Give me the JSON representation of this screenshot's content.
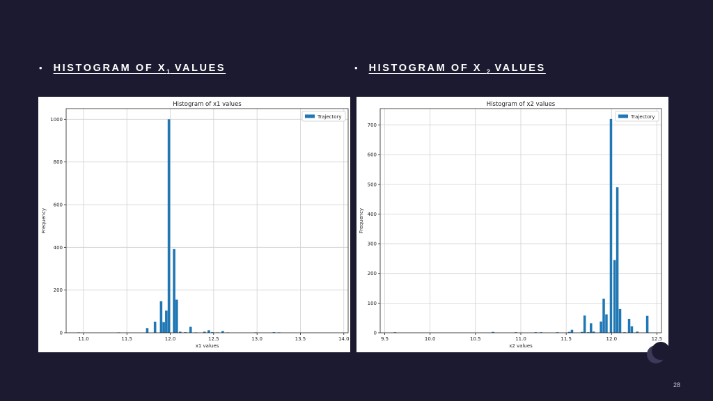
{
  "slide": {
    "heading_left": {
      "bullet": "•",
      "pre": "HISTOGRAM OF X",
      "sub": "1",
      "post": " VALUES"
    },
    "heading_right": {
      "bullet": "•",
      "pre": "HISTOGRAM OF X ",
      "sub": "2",
      "post": " VALUES"
    },
    "page_number": "28"
  },
  "colors": {
    "background": "#1c1a30",
    "bar": "#1f77b4",
    "panel": "#ffffff"
  },
  "chart_data": [
    {
      "type": "bar",
      "title": "Histogram of x1 values",
      "xlabel": "x1 values",
      "ylabel": "Frequency",
      "legend": [
        "Trajectory"
      ],
      "legend_position": "top-right",
      "grid": true,
      "xlim": [
        10.8,
        14.05
      ],
      "ylim": [
        0,
        1050
      ],
      "xticks": [
        "11.0",
        "11.5",
        "12.0",
        "12.5",
        "13.0",
        "13.5",
        "14.0"
      ],
      "yticks": [
        "0",
        "200",
        "400",
        "600",
        "800",
        "1000"
      ],
      "bin_width": 0.032,
      "bins": [
        [
          10.93,
          2
        ],
        [
          11.39,
          2
        ],
        [
          11.72,
          22
        ],
        [
          11.81,
          52
        ],
        [
          11.88,
          148
        ],
        [
          11.91,
          50
        ],
        [
          11.94,
          104
        ],
        [
          11.97,
          1000
        ],
        [
          12.03,
          392
        ],
        [
          12.06,
          155
        ],
        [
          12.1,
          5
        ],
        [
          12.16,
          3
        ],
        [
          12.22,
          28
        ],
        [
          12.28,
          2
        ],
        [
          12.38,
          5
        ],
        [
          12.43,
          12
        ],
        [
          12.47,
          3
        ],
        [
          12.53,
          2
        ],
        [
          12.59,
          8
        ],
        [
          12.65,
          2
        ],
        [
          12.97,
          2
        ],
        [
          13.18,
          3
        ],
        [
          13.24,
          2
        ]
      ]
    },
    {
      "type": "bar",
      "title": "Histogram of x2 values",
      "xlabel": "x2 values",
      "ylabel": "Frequency",
      "legend": [
        "Trajectory"
      ],
      "legend_position": "top-right",
      "grid": true,
      "xlim": [
        9.45,
        12.55
      ],
      "ylim": [
        0,
        755
      ],
      "xticks": [
        "9.5",
        "10.0",
        "10.5",
        "11.0",
        "11.5",
        "12.0",
        "12.5"
      ],
      "yticks": [
        "0",
        "100",
        "200",
        "300",
        "400",
        "500",
        "600",
        "700"
      ],
      "bin_width": 0.03,
      "bins": [
        [
          9.6,
          2
        ],
        [
          10.68,
          3
        ],
        [
          10.93,
          2
        ],
        [
          11.15,
          2
        ],
        [
          11.21,
          2
        ],
        [
          11.39,
          2
        ],
        [
          11.52,
          3
        ],
        [
          11.55,
          10
        ],
        [
          11.66,
          3
        ],
        [
          11.69,
          58
        ],
        [
          11.73,
          2
        ],
        [
          11.76,
          32
        ],
        [
          11.79,
          4
        ],
        [
          11.87,
          38
        ],
        [
          11.9,
          115
        ],
        [
          11.93,
          62
        ],
        [
          11.98,
          720
        ],
        [
          12.02,
          245
        ],
        [
          12.05,
          490
        ],
        [
          12.08,
          80
        ],
        [
          12.13,
          2
        ],
        [
          12.18,
          47
        ],
        [
          12.21,
          22
        ],
        [
          12.27,
          4
        ],
        [
          12.38,
          57
        ]
      ]
    }
  ]
}
